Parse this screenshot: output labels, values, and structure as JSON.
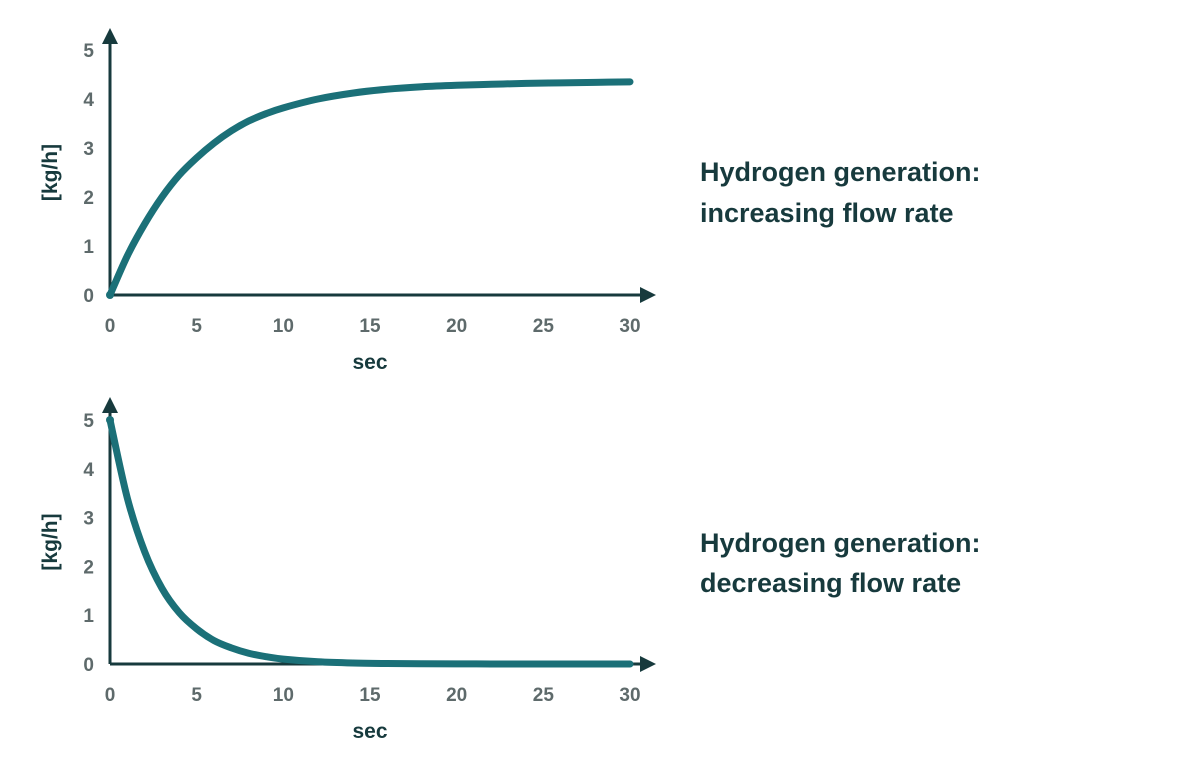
{
  "chart_data": [
    {
      "type": "line",
      "title_lines": [
        "Hydrogen generation:",
        "increasing flow rate"
      ],
      "xlabel": "sec",
      "ylabel": "[kg/h]",
      "xlim": [
        0,
        30
      ],
      "ylim": [
        0,
        5
      ],
      "xticks": [
        "0",
        "5",
        "10",
        "15",
        "20",
        "25",
        "30"
      ],
      "yticks": [
        "0",
        "1",
        "2",
        "3",
        "4",
        "5"
      ],
      "grid": false,
      "series": [
        {
          "x": [
            0,
            1,
            2,
            3,
            4,
            5,
            6,
            7,
            8,
            9,
            10,
            12,
            14,
            16,
            18,
            20,
            22,
            24,
            26,
            28,
            30
          ],
          "values": [
            0,
            0.8,
            1.45,
            2.0,
            2.45,
            2.8,
            3.1,
            3.35,
            3.55,
            3.7,
            3.82,
            4.0,
            4.12,
            4.2,
            4.25,
            4.28,
            4.3,
            4.32,
            4.33,
            4.34,
            4.35
          ]
        }
      ]
    },
    {
      "type": "line",
      "title_lines": [
        "Hydrogen generation:",
        "decreasing flow rate"
      ],
      "xlabel": "sec",
      "ylabel": "[kg/h]",
      "xlim": [
        0,
        30
      ],
      "ylim": [
        0,
        5
      ],
      "xticks": [
        "0",
        "5",
        "10",
        "15",
        "20",
        "25",
        "30"
      ],
      "yticks": [
        "0",
        "1",
        "2",
        "3",
        "4",
        "5"
      ],
      "grid": false,
      "series": [
        {
          "x": [
            0,
            1,
            2,
            3,
            4,
            5,
            6,
            7,
            8,
            9,
            10,
            12,
            14,
            16,
            18,
            20,
            22,
            24,
            26,
            28,
            30
          ],
          "values": [
            5,
            3.4,
            2.3,
            1.55,
            1.05,
            0.72,
            0.48,
            0.33,
            0.22,
            0.15,
            0.1,
            0.045,
            0.02,
            0.01,
            0.005,
            0.002,
            0.001,
            0,
            0,
            0,
            0
          ]
        }
      ]
    }
  ],
  "colors": {
    "line": "#1b7078",
    "axis": "#173a3d",
    "tick_text": "#5e6a6b",
    "title_text": "#173a3d"
  }
}
